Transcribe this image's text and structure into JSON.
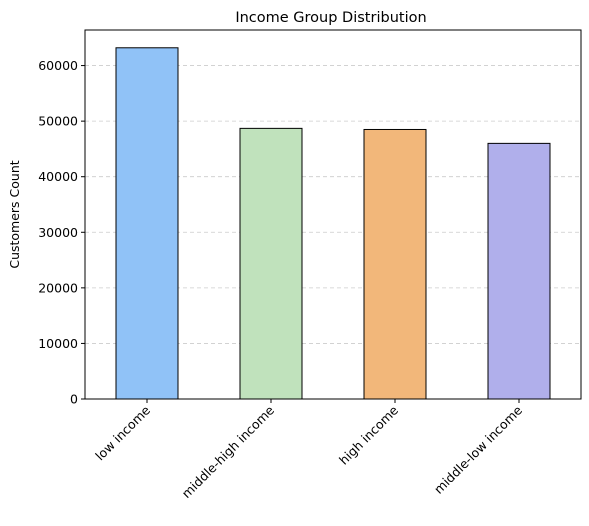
{
  "chart_data": {
    "type": "bar",
    "title": "Income Group Distribution",
    "xlabel": "",
    "ylabel": "Customers Count",
    "categories": [
      "low income",
      "middle-high income",
      "high income",
      "middle-low income"
    ],
    "values": [
      63200,
      48700,
      48500,
      46000
    ],
    "colors": [
      "#90c2f7",
      "#c0e2bc",
      "#f2b77a",
      "#b0afeb"
    ],
    "ylim": [
      0,
      66400
    ],
    "yticks": [
      0,
      10000,
      20000,
      30000,
      40000,
      50000,
      60000
    ],
    "grid": "y-dashed",
    "legend": "none"
  }
}
